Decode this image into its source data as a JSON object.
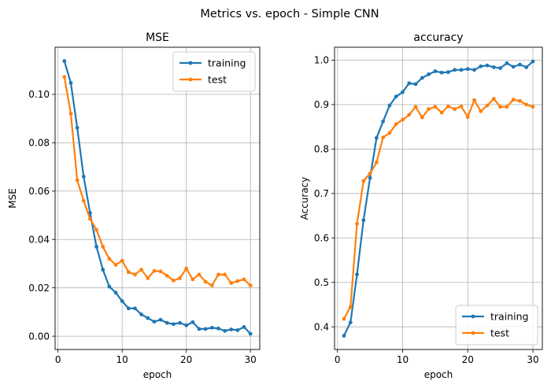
{
  "figure": {
    "suptitle": "Metrics vs. epoch - Simple CNN"
  },
  "colors": {
    "training": "#1f77b4",
    "test": "#ff7f0e",
    "grid": "#b0b0b0",
    "axis": "#000000"
  },
  "chart_data": [
    {
      "type": "line",
      "title": "MSE",
      "xlabel": "epoch",
      "ylabel": "MSE",
      "xlim": [
        -0.45,
        31.45
      ],
      "ylim": [
        -0.0055,
        0.1195
      ],
      "xticks": [
        0,
        10,
        20,
        30
      ],
      "xtick_labels": [
        "0",
        "10",
        "20",
        "30"
      ],
      "yticks": [
        0.0,
        0.02,
        0.04,
        0.06,
        0.08,
        0.1
      ],
      "ytick_labels": [
        "0.00",
        "0.02",
        "0.04",
        "0.06",
        "0.08",
        "0.10"
      ],
      "grid": true,
      "legend_position": "top-right",
      "x": [
        1,
        2,
        3,
        4,
        5,
        6,
        7,
        8,
        9,
        10,
        11,
        12,
        13,
        14,
        15,
        16,
        17,
        18,
        19,
        20,
        21,
        22,
        23,
        24,
        25,
        26,
        27,
        28,
        29,
        30
      ],
      "series": [
        {
          "name": "training",
          "values": [
            0.1138,
            0.1047,
            0.0862,
            0.066,
            0.051,
            0.037,
            0.0275,
            0.0205,
            0.018,
            0.0145,
            0.0115,
            0.0115,
            0.009,
            0.0075,
            0.006,
            0.0068,
            0.0055,
            0.005,
            0.0055,
            0.0045,
            0.0058,
            0.003,
            0.003,
            0.0035,
            0.0032,
            0.0022,
            0.0028,
            0.0025,
            0.0038,
            0.001
          ]
        },
        {
          "name": "test",
          "values": [
            0.1072,
            0.092,
            0.0645,
            0.056,
            0.0485,
            0.044,
            0.037,
            0.032,
            0.0295,
            0.0312,
            0.0265,
            0.0255,
            0.0275,
            0.024,
            0.027,
            0.0268,
            0.025,
            0.023,
            0.024,
            0.028,
            0.0235,
            0.0255,
            0.0225,
            0.021,
            0.0255,
            0.0255,
            0.022,
            0.0228,
            0.0235,
            0.021
          ]
        }
      ]
    },
    {
      "type": "line",
      "title": "accuracy",
      "xlabel": "epoch",
      "ylabel": "Accuracy",
      "xlim": [
        -0.45,
        31.45
      ],
      "ylim": [
        0.349,
        1.029
      ],
      "xticks": [
        0,
        10,
        20,
        30
      ],
      "xtick_labels": [
        "0",
        "10",
        "20",
        "30"
      ],
      "yticks": [
        0.4,
        0.5,
        0.6,
        0.7,
        0.8,
        0.9,
        1.0
      ],
      "ytick_labels": [
        "0.4",
        "0.5",
        "0.6",
        "0.7",
        "0.8",
        "0.9",
        "1.0"
      ],
      "grid": true,
      "legend_position": "bottom-right",
      "x": [
        1,
        2,
        3,
        4,
        5,
        6,
        7,
        8,
        9,
        10,
        11,
        12,
        13,
        14,
        15,
        16,
        17,
        18,
        19,
        20,
        21,
        22,
        23,
        24,
        25,
        26,
        27,
        28,
        29,
        30
      ],
      "series": [
        {
          "name": "training",
          "values": [
            0.38,
            0.41,
            0.518,
            0.64,
            0.735,
            0.825,
            0.862,
            0.898,
            0.918,
            0.928,
            0.948,
            0.946,
            0.96,
            0.968,
            0.975,
            0.972,
            0.973,
            0.978,
            0.978,
            0.98,
            0.978,
            0.986,
            0.988,
            0.984,
            0.982,
            0.993,
            0.985,
            0.99,
            0.984,
            0.997
          ]
        },
        {
          "name": "test",
          "values": [
            0.418,
            0.445,
            0.632,
            0.728,
            0.745,
            0.77,
            0.826,
            0.836,
            0.856,
            0.866,
            0.877,
            0.895,
            0.871,
            0.89,
            0.895,
            0.882,
            0.896,
            0.89,
            0.896,
            0.872,
            0.91,
            0.885,
            0.898,
            0.913,
            0.895,
            0.895,
            0.911,
            0.908,
            0.9,
            0.895
          ]
        }
      ]
    }
  ]
}
